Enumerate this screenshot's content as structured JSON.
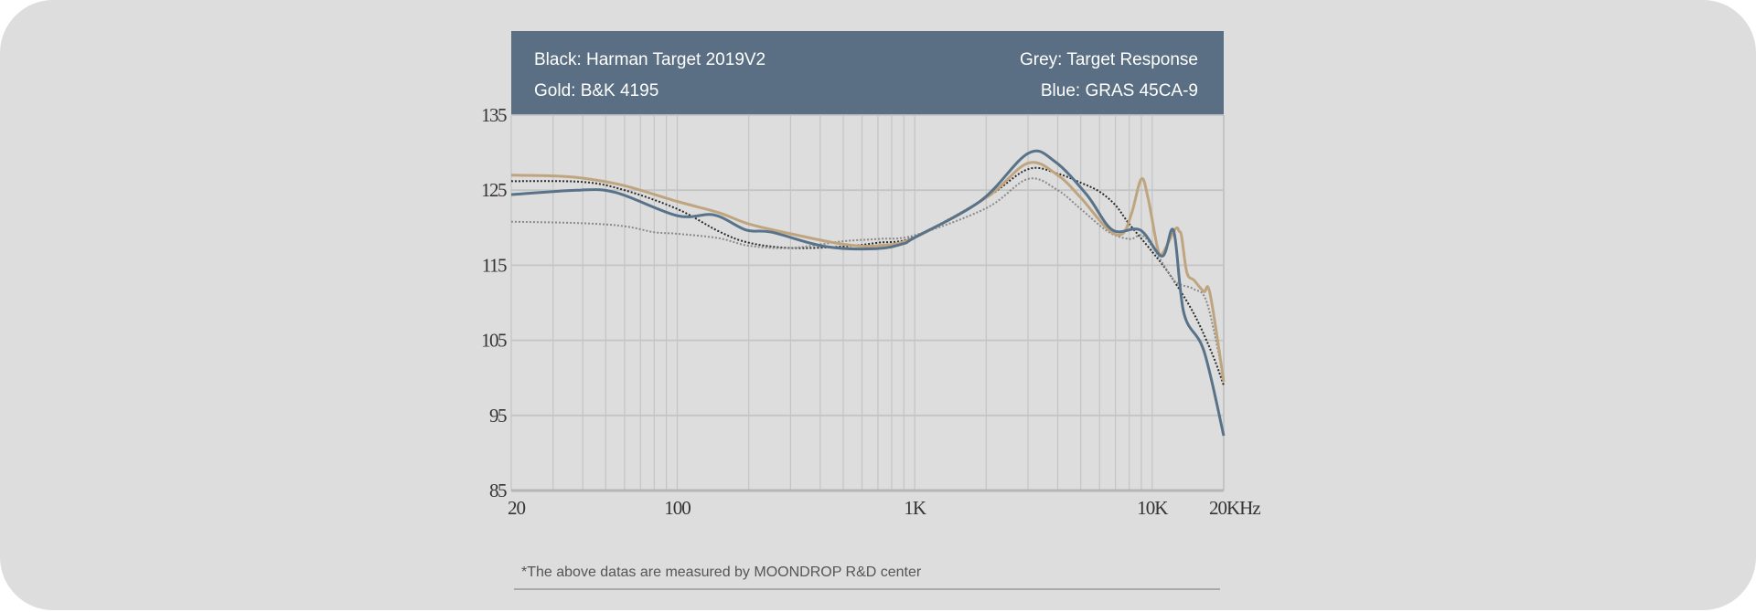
{
  "chart_data": {
    "type": "line",
    "title": "",
    "xlabel": "",
    "ylabel": "",
    "xscale": "log",
    "xlim": [
      20,
      20000
    ],
    "ylim": [
      85,
      135
    ],
    "grid": true,
    "y_ticks": [
      "135",
      "125",
      "115",
      "105",
      "95",
      "85"
    ],
    "y_tick_values": [
      135,
      125,
      115,
      105,
      95,
      85
    ],
    "x_ticks": [
      "20",
      "100",
      "1K",
      "10K",
      "20KHz"
    ],
    "x_tick_values": [
      20,
      100,
      1000,
      10000,
      20000
    ],
    "legend": {
      "placement": "top",
      "items": [
        {
          "label": "Black: Harman Target 2019V2"
        },
        {
          "label": "Grey: Target Response"
        },
        {
          "label": "Gold: B&K 4195"
        },
        {
          "label": "Blue: GRAS 45CA-9"
        }
      ]
    },
    "series": [
      {
        "name": "Harman Target 2019V2",
        "color": "#2a2a2a",
        "style": "dotted",
        "x": [
          20,
          40,
          60,
          100,
          150,
          200,
          300,
          500,
          700,
          1000,
          2000,
          3000,
          4000,
          5000,
          6000,
          7000,
          8000,
          10000,
          12000,
          15000,
          18000,
          20000
        ],
        "y": [
          126.2,
          126.1,
          125,
          122.5,
          119.5,
          118,
          117.3,
          117.5,
          118,
          118.8,
          124,
          127.8,
          127.2,
          126,
          124.8,
          123,
          120.5,
          116.8,
          113.5,
          108.5,
          103,
          99
        ]
      },
      {
        "name": "Target Response",
        "color": "#8a8a8a",
        "style": "dotted",
        "x": [
          20,
          40,
          60,
          80,
          100,
          150,
          200,
          300,
          500,
          700,
          1000,
          2000,
          3000,
          4000,
          5000,
          6500,
          8000,
          9000,
          10000,
          12000,
          13000,
          15000,
          17000,
          20000
        ],
        "y": [
          120.8,
          120.6,
          120.2,
          119.4,
          119.2,
          118.6,
          117.6,
          117.3,
          118.2,
          118.5,
          119,
          122.6,
          126.5,
          125,
          122.5,
          119.5,
          118.5,
          119,
          117.5,
          113.5,
          112.5,
          111.8,
          110,
          100
        ]
      },
      {
        "name": "B&K 4195",
        "color": "#bfa57f",
        "style": "solid",
        "x": [
          20,
          30,
          40,
          60,
          100,
          150,
          200,
          300,
          500,
          700,
          1000,
          2000,
          3000,
          4000,
          5000,
          6500,
          7500,
          8200,
          9000,
          9600,
          10500,
          11000,
          12500,
          13000,
          13300,
          14000,
          15000,
          16500,
          17500,
          20000
        ],
        "y": [
          127,
          126.9,
          126.6,
          125.6,
          123.5,
          122,
          120.5,
          119.2,
          117.8,
          117.6,
          118.7,
          124,
          128.6,
          127,
          124,
          119.8,
          119.2,
          122,
          126.5,
          124,
          117.5,
          116.5,
          119.8,
          119.5,
          118.8,
          114,
          113,
          111.5,
          111.3,
          99.5
        ]
      },
      {
        "name": "GRAS 45CA-9",
        "color": "#587289",
        "style": "solid",
        "x": [
          20,
          38,
          55,
          100,
          143,
          195,
          250,
          420,
          690,
          900,
          1000,
          1900,
          3000,
          3900,
          5300,
          6800,
          8900,
          11000,
          12300,
          13600,
          16500,
          20000
        ],
        "y": [
          124.4,
          125,
          124.7,
          121.6,
          121.7,
          119.7,
          119.4,
          117.5,
          117.2,
          117.9,
          118.7,
          123.6,
          129.9,
          128.8,
          124.4,
          119.7,
          119.7,
          116.2,
          119.6,
          108.6,
          103.6,
          92.3
        ]
      }
    ]
  },
  "footnote": "*The above datas are measured by MOONDROP R&D center",
  "colors": {
    "background": "#dcdddc",
    "header": "#5a6f83",
    "grid": "#c3c4c5"
  }
}
